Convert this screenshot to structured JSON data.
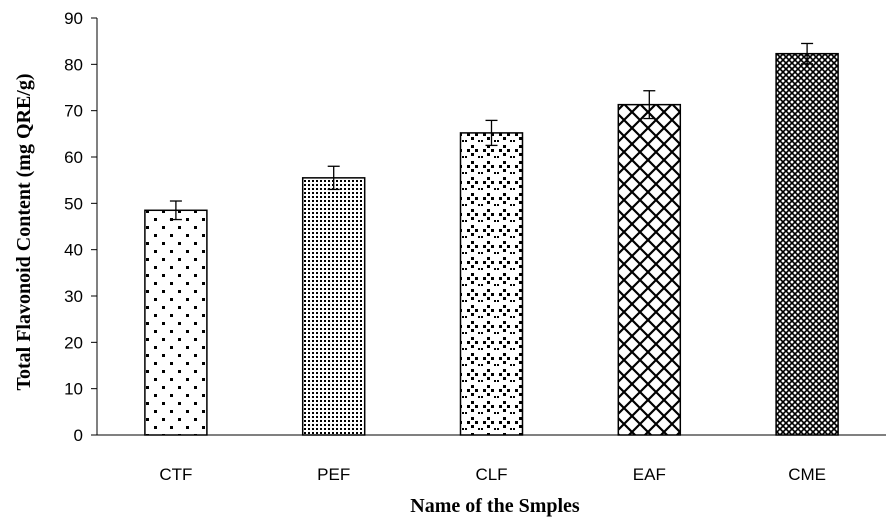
{
  "chart_data": {
    "type": "bar",
    "title": "",
    "xlabel": "Name of the Smples",
    "ylabel": "Total Flavonoid Content (mg QRE/g)",
    "categories": [
      "CTF",
      "PEF",
      "CLF",
      "EAF",
      "CME"
    ],
    "values": [
      48.5,
      55.5,
      65.2,
      71.3,
      82.3
    ],
    "error_bars": [
      2.0,
      2.5,
      2.7,
      3.0,
      2.2
    ],
    "ylim": [
      0,
      90
    ],
    "yticks": [
      0,
      10,
      20,
      30,
      40,
      50,
      60,
      70,
      80,
      90
    ],
    "grid": false,
    "legend": "none",
    "bar_fill_patterns": [
      "sparse-dots",
      "dense-dots",
      "diamond-dots",
      "diamond-lattice",
      "dense-lattice"
    ],
    "colors": {
      "bar_outline": "#000000",
      "background": "#ffffff"
    }
  }
}
